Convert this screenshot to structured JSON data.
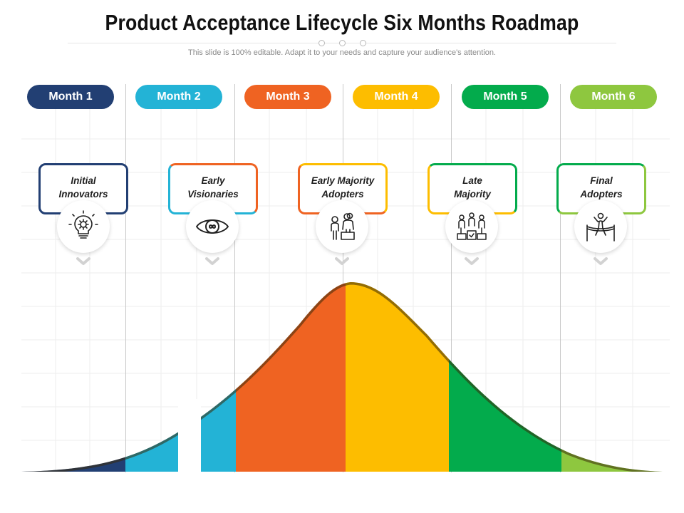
{
  "title": "Product Acceptance Lifecycle Six Months Roadmap",
  "subtitle": "This slide is 100% editable. Adapt it to your needs and capture your audience's attention.",
  "months": [
    {
      "label": "Month 1",
      "color": "#223f73"
    },
    {
      "label": "Month 2",
      "color": "#23b3d6"
    },
    {
      "label": "Month 3",
      "color": "#ef6322"
    },
    {
      "label": "Month 4",
      "color": "#fdbd00"
    },
    {
      "label": "Month 5",
      "color": "#03ab4c"
    },
    {
      "label": "Month 6",
      "color": "#8ec73f"
    }
  ],
  "stages": [
    {
      "line1": "Initial",
      "line2": "Innovators",
      "icon": "lightbulb-gear-icon"
    },
    {
      "line1": "Early",
      "line2": "Visionaries",
      "icon": "eye-infinity-icon"
    },
    {
      "line1": "Early Majority",
      "line2": "Adopters",
      "icon": "people-adopters-icon"
    },
    {
      "line1": "Late",
      "line2": "Majority",
      "icon": "people-podium-icon"
    },
    {
      "line1": "Final",
      "line2": "Adopters",
      "icon": "finish-line-icon"
    }
  ]
}
